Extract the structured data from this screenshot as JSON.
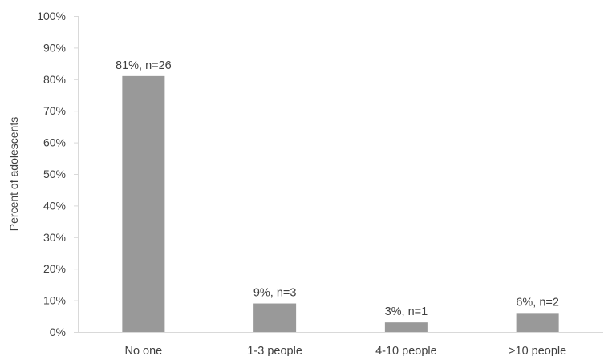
{
  "chart_data": {
    "type": "bar",
    "categories": [
      "No one",
      "1-3 people",
      "4-10 people",
      ">10 people"
    ],
    "values": [
      81,
      9,
      3,
      6
    ],
    "value_unit": "%",
    "data_labels": [
      "81%, n=26",
      "9%, n=3",
      "3%, n=1",
      "6%, n=2"
    ],
    "title": "",
    "xlabel": "",
    "ylabel": "Percent of adolescents",
    "ylim": [
      0,
      100
    ],
    "y_ticks": [
      0,
      10,
      20,
      30,
      40,
      50,
      60,
      70,
      80,
      90,
      100
    ],
    "y_tick_labels": [
      "0%",
      "10%",
      "20%",
      "30%",
      "40%",
      "50%",
      "60%",
      "70%",
      "80%",
      "90%",
      "100%"
    ],
    "grid": false,
    "legend": "none",
    "colors": {
      "bar": "#999999",
      "axis": "#d9d9d9",
      "text": "#404040"
    }
  }
}
